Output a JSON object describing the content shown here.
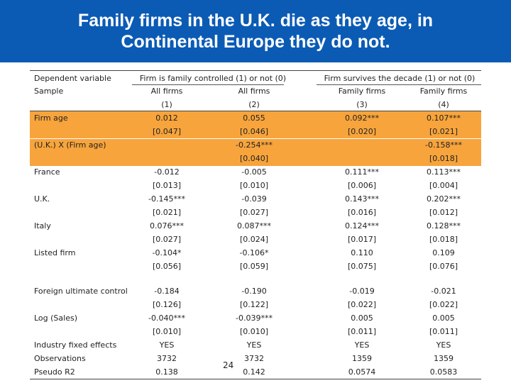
{
  "slide": {
    "title_line1": "Family firms in the U.K. die as they age, in",
    "title_line2": "Continental Europe they do not.",
    "page_number": "24"
  },
  "table": {
    "header": {
      "dep_var_label": "Dependent variable",
      "sample_label": "Sample",
      "group1": "Firm is family controlled (1) or not (0)",
      "group2": "Firm survives the decade (1) or not (0)",
      "samples": [
        "All firms",
        "All firms",
        "Family firms",
        "Family firms"
      ],
      "col_numbers": [
        "(1)",
        "(2)",
        "(3)",
        "(4)"
      ]
    },
    "rows": [
      {
        "label": "Firm age",
        "coef": [
          "0.012",
          "0.055",
          "0.092***",
          "0.107***"
        ],
        "se": [
          "[0.047]",
          "[0.046]",
          "[0.020]",
          "[0.021]"
        ]
      },
      {
        "label": "(U.K.) X (Firm age)",
        "coef": [
          "",
          "-0.254***",
          "",
          "-0.158***"
        ],
        "se": [
          "",
          "[0.040]",
          "",
          "[0.018]"
        ]
      },
      {
        "label": "France",
        "coef": [
          "-0.012",
          "-0.005",
          "0.111***",
          "0.113***"
        ],
        "se": [
          "[0.013]",
          "[0.010]",
          "[0.006]",
          "[0.004]"
        ]
      },
      {
        "label": "U.K.",
        "coef": [
          "-0.145***",
          "-0.039",
          "0.143***",
          "0.202***"
        ],
        "se": [
          "[0.021]",
          "[0.027]",
          "[0.016]",
          "[0.012]"
        ]
      },
      {
        "label": "Italy",
        "coef": [
          "0.076***",
          "0.087***",
          "0.124***",
          "0.128***"
        ],
        "se": [
          "[0.027]",
          "[0.024]",
          "[0.017]",
          "[0.018]"
        ]
      },
      {
        "label": "Listed firm",
        "coef": [
          "-0.104*",
          "-0.106*",
          "0.110",
          "0.109"
        ],
        "se": [
          "[0.056]",
          "[0.059]",
          "[0.075]",
          "[0.076]"
        ]
      },
      {
        "label": "Foreign ultimate control",
        "coef": [
          "-0.184",
          "-0.190",
          "-0.019",
          "-0.021"
        ],
        "se": [
          "[0.126]",
          "[0.122]",
          "[0.022]",
          "[0.022]"
        ]
      },
      {
        "label": "Log (Sales)",
        "coef": [
          "-0.040***",
          "-0.039***",
          "0.005",
          "0.005"
        ],
        "se": [
          "[0.010]",
          "[0.010]",
          "[0.011]",
          "[0.011]"
        ]
      }
    ],
    "footer": [
      {
        "label": "Industry fixed effects",
        "values": [
          "YES",
          "YES",
          "YES",
          "YES"
        ]
      },
      {
        "label": "Observations",
        "values": [
          "3732",
          "3732",
          "1359",
          "1359"
        ]
      },
      {
        "label": "Pseudo R2",
        "values": [
          "0.138",
          "0.142",
          "0.0574",
          "0.0583"
        ]
      }
    ]
  },
  "colors": {
    "title_bar": "#0b5bb5",
    "highlight": "#f7a43c"
  }
}
